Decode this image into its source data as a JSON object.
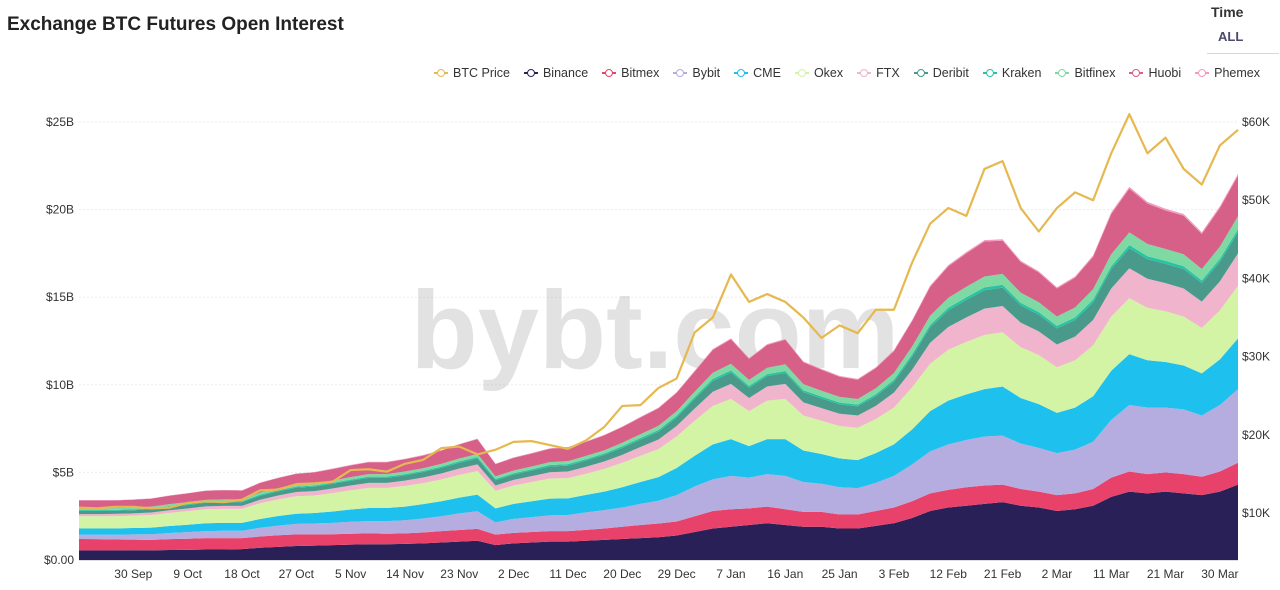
{
  "header": {
    "title": "Exchange BTC Futures Open Interest"
  },
  "time_selector": {
    "label": "Time",
    "value": "ALL"
  },
  "watermark": "bybt.com",
  "colors": {
    "BTC Price": "#e6b84f",
    "Binance": "#2a2058",
    "Bitmex": "#e8426a",
    "Bybit": "#b5acdf",
    "CME": "#1ec0ee",
    "Okex": "#d3f3a5",
    "FTX": "#f0b4cc",
    "Deribit": "#4a9a8c",
    "Kraken": "#27c4a4",
    "Bitfinex": "#7fd9a2",
    "Huobi": "#d66087",
    "Phemex": "#f598c2"
  },
  "chart_data": {
    "type": "area",
    "title": "Exchange BTC Futures Open Interest",
    "stacked": true,
    "x": [
      "21 Sep",
      "24 Sep",
      "27 Sep",
      "30 Sep",
      "3 Oct",
      "6 Oct",
      "9 Oct",
      "12 Oct",
      "15 Oct",
      "18 Oct",
      "21 Oct",
      "24 Oct",
      "27 Oct",
      "30 Oct",
      "2 Nov",
      "5 Nov",
      "8 Nov",
      "11 Nov",
      "14 Nov",
      "17 Nov",
      "20 Nov",
      "23 Nov",
      "26 Nov",
      "29 Nov",
      "2 Dec",
      "5 Dec",
      "8 Dec",
      "11 Dec",
      "14 Dec",
      "17 Dec",
      "20 Dec",
      "23 Dec",
      "26 Dec",
      "29 Dec",
      "1 Jan",
      "4 Jan",
      "7 Jan",
      "10 Jan",
      "13 Jan",
      "16 Jan",
      "19 Jan",
      "22 Jan",
      "25 Jan",
      "28 Jan",
      "31 Jan",
      "3 Feb",
      "6 Feb",
      "9 Feb",
      "12 Feb",
      "15 Feb",
      "18 Feb",
      "21 Feb",
      "24 Feb",
      "27 Feb",
      "2 Mar",
      "5 Mar",
      "8 Mar",
      "11 Mar",
      "14 Mar",
      "17 Mar",
      "20 Mar",
      "23 Mar",
      "26 Mar",
      "29 Mar",
      "1 Apr"
    ],
    "x_tick_labels": [
      "30 Sep",
      "9 Oct",
      "18 Oct",
      "27 Oct",
      "5 Nov",
      "14 Nov",
      "23 Nov",
      "2 Dec",
      "11 Dec",
      "20 Dec",
      "29 Dec",
      "7 Jan",
      "16 Jan",
      "25 Jan",
      "3 Feb",
      "12 Feb",
      "21 Feb",
      "2 Mar",
      "11 Mar",
      "21 Mar",
      "30 Mar"
    ],
    "y_left": {
      "ticks": [
        "$0.00",
        "$5B",
        "$10B",
        "$15B",
        "$20B",
        "$25B"
      ],
      "range": [
        0,
        25000000000
      ]
    },
    "y_right": {
      "ticks": [
        "$10K",
        "$20K",
        "$30K",
        "$40K",
        "$50K",
        "$60K"
      ],
      "range": [
        4000,
        60000
      ]
    },
    "grid": true,
    "legend": "top-right",
    "series": [
      {
        "name": "Binance",
        "axis": "left",
        "values": [
          0.55,
          0.55,
          0.55,
          0.56,
          0.55,
          0.57,
          0.58,
          0.6,
          0.6,
          0.62,
          0.7,
          0.75,
          0.8,
          0.82,
          0.85,
          0.88,
          0.9,
          0.9,
          0.92,
          0.95,
          1.0,
          1.05,
          1.1,
          0.85,
          0.95,
          1.0,
          1.05,
          1.05,
          1.1,
          1.15,
          1.2,
          1.25,
          1.3,
          1.4,
          1.6,
          1.8,
          1.9,
          2.0,
          2.1,
          2.0,
          1.9,
          1.9,
          1.8,
          1.8,
          1.95,
          2.1,
          2.4,
          2.8,
          3.0,
          3.1,
          3.2,
          3.3,
          3.1,
          3.0,
          2.8,
          2.9,
          3.1,
          3.6,
          3.9,
          3.8,
          3.9,
          3.8,
          3.7,
          3.9,
          4.3
        ]
      },
      {
        "name": "Bitmex",
        "axis": "left",
        "values": [
          0.65,
          0.64,
          0.62,
          0.6,
          0.6,
          0.62,
          0.63,
          0.65,
          0.65,
          0.63,
          0.64,
          0.66,
          0.66,
          0.64,
          0.62,
          0.62,
          0.62,
          0.6,
          0.6,
          0.62,
          0.65,
          0.66,
          0.68,
          0.6,
          0.6,
          0.6,
          0.6,
          0.6,
          0.62,
          0.65,
          0.7,
          0.75,
          0.78,
          0.8,
          0.9,
          1.0,
          1.0,
          0.95,
          0.95,
          0.9,
          0.85,
          0.85,
          0.8,
          0.8,
          0.85,
          0.9,
          0.95,
          1.0,
          1.0,
          1.05,
          1.05,
          1.0,
          0.95,
          0.9,
          0.9,
          0.9,
          0.95,
          1.1,
          1.15,
          1.1,
          1.1,
          1.1,
          1.05,
          1.15,
          1.25
        ]
      },
      {
        "name": "Bybit",
        "axis": "left",
        "values": [
          0.25,
          0.26,
          0.27,
          0.3,
          0.32,
          0.35,
          0.38,
          0.4,
          0.42,
          0.42,
          0.5,
          0.55,
          0.6,
          0.62,
          0.65,
          0.68,
          0.7,
          0.72,
          0.75,
          0.8,
          0.85,
          0.95,
          1.0,
          0.7,
          0.8,
          0.85,
          0.9,
          0.92,
          1.0,
          1.05,
          1.1,
          1.2,
          1.3,
          1.5,
          1.7,
          1.8,
          1.9,
          1.75,
          1.85,
          1.9,
          1.7,
          1.6,
          1.55,
          1.5,
          1.6,
          1.8,
          2.1,
          2.4,
          2.6,
          2.7,
          2.8,
          2.8,
          2.6,
          2.5,
          2.4,
          2.5,
          2.7,
          3.3,
          3.8,
          3.8,
          3.7,
          3.7,
          3.5,
          3.8,
          4.2
        ]
      },
      {
        "name": "CME",
        "axis": "left",
        "values": [
          0.35,
          0.35,
          0.36,
          0.37,
          0.38,
          0.4,
          0.42,
          0.45,
          0.45,
          0.45,
          0.5,
          0.55,
          0.58,
          0.6,
          0.65,
          0.7,
          0.75,
          0.75,
          0.78,
          0.82,
          0.85,
          0.9,
          0.95,
          0.8,
          0.85,
          0.9,
          0.95,
          0.95,
          1.0,
          1.05,
          1.15,
          1.25,
          1.35,
          1.55,
          1.75,
          2.0,
          2.1,
          1.8,
          2.0,
          2.1,
          1.8,
          1.7,
          1.65,
          1.6,
          1.7,
          1.8,
          2.0,
          2.3,
          2.5,
          2.6,
          2.7,
          2.8,
          2.6,
          2.5,
          2.3,
          2.4,
          2.6,
          2.8,
          2.9,
          2.7,
          2.6,
          2.5,
          2.4,
          2.6,
          2.9
        ]
      },
      {
        "name": "Okex",
        "axis": "left",
        "values": [
          0.7,
          0.7,
          0.7,
          0.7,
          0.72,
          0.75,
          0.78,
          0.8,
          0.8,
          0.8,
          0.9,
          0.95,
          1.0,
          1.0,
          1.05,
          1.1,
          1.15,
          1.15,
          1.18,
          1.2,
          1.25,
          1.3,
          1.35,
          1.0,
          1.05,
          1.1,
          1.15,
          1.15,
          1.2,
          1.3,
          1.4,
          1.5,
          1.6,
          1.8,
          2.0,
          2.2,
          2.3,
          2.0,
          2.2,
          2.3,
          2.0,
          1.9,
          1.85,
          1.85,
          1.95,
          2.1,
          2.4,
          2.7,
          2.9,
          3.0,
          3.1,
          3.1,
          2.9,
          2.8,
          2.6,
          2.7,
          2.9,
          3.1,
          3.2,
          3.0,
          2.9,
          2.8,
          2.6,
          2.8,
          3.0
        ]
      },
      {
        "name": "FTX",
        "axis": "left",
        "values": [
          0.12,
          0.12,
          0.13,
          0.13,
          0.14,
          0.15,
          0.15,
          0.16,
          0.17,
          0.17,
          0.2,
          0.22,
          0.24,
          0.25,
          0.26,
          0.27,
          0.28,
          0.28,
          0.3,
          0.32,
          0.34,
          0.36,
          0.38,
          0.3,
          0.32,
          0.34,
          0.36,
          0.38,
          0.4,
          0.42,
          0.45,
          0.5,
          0.55,
          0.6,
          0.7,
          0.8,
          0.85,
          0.75,
          0.8,
          0.85,
          0.75,
          0.72,
          0.7,
          0.7,
          0.75,
          0.85,
          1.0,
          1.2,
          1.3,
          1.4,
          1.5,
          1.5,
          1.4,
          1.35,
          1.3,
          1.35,
          1.45,
          1.6,
          1.7,
          1.65,
          1.6,
          1.6,
          1.5,
          1.65,
          1.85
        ]
      },
      {
        "name": "Deribit",
        "axis": "left",
        "values": [
          0.18,
          0.18,
          0.18,
          0.18,
          0.19,
          0.2,
          0.2,
          0.21,
          0.21,
          0.21,
          0.23,
          0.24,
          0.25,
          0.26,
          0.27,
          0.28,
          0.29,
          0.29,
          0.3,
          0.31,
          0.32,
          0.33,
          0.34,
          0.3,
          0.31,
          0.32,
          0.33,
          0.34,
          0.36,
          0.38,
          0.4,
          0.42,
          0.44,
          0.48,
          0.55,
          0.62,
          0.65,
          0.58,
          0.6,
          0.62,
          0.58,
          0.55,
          0.53,
          0.52,
          0.55,
          0.62,
          0.75,
          0.88,
          0.95,
          1.0,
          1.05,
          1.05,
          0.98,
          0.95,
          0.92,
          0.95,
          1.0,
          1.1,
          1.15,
          1.12,
          1.1,
          1.1,
          1.05,
          1.12,
          1.2
        ]
      },
      {
        "name": "Kraken",
        "axis": "left",
        "values": [
          0.05,
          0.05,
          0.05,
          0.05,
          0.05,
          0.05,
          0.05,
          0.05,
          0.05,
          0.05,
          0.06,
          0.06,
          0.06,
          0.06,
          0.06,
          0.06,
          0.07,
          0.07,
          0.07,
          0.07,
          0.07,
          0.08,
          0.08,
          0.07,
          0.07,
          0.07,
          0.08,
          0.08,
          0.08,
          0.08,
          0.09,
          0.09,
          0.1,
          0.1,
          0.11,
          0.12,
          0.12,
          0.11,
          0.11,
          0.12,
          0.11,
          0.11,
          0.11,
          0.1,
          0.11,
          0.12,
          0.13,
          0.14,
          0.15,
          0.15,
          0.16,
          0.16,
          0.15,
          0.15,
          0.14,
          0.15,
          0.16,
          0.17,
          0.18,
          0.17,
          0.17,
          0.17,
          0.16,
          0.17,
          0.18
        ]
      },
      {
        "name": "Bitfinex",
        "axis": "left",
        "values": [
          0.1,
          0.1,
          0.1,
          0.1,
          0.1,
          0.1,
          0.11,
          0.11,
          0.11,
          0.11,
          0.12,
          0.12,
          0.13,
          0.13,
          0.13,
          0.14,
          0.14,
          0.14,
          0.15,
          0.15,
          0.16,
          0.16,
          0.17,
          0.15,
          0.16,
          0.16,
          0.17,
          0.17,
          0.18,
          0.18,
          0.2,
          0.22,
          0.24,
          0.26,
          0.3,
          0.35,
          0.38,
          0.34,
          0.36,
          0.38,
          0.35,
          0.33,
          0.32,
          0.32,
          0.34,
          0.38,
          0.45,
          0.52,
          0.56,
          0.6,
          0.62,
          0.62,
          0.58,
          0.56,
          0.54,
          0.56,
          0.6,
          0.68,
          0.72,
          0.7,
          0.68,
          0.68,
          0.65,
          0.7,
          0.75
        ]
      },
      {
        "name": "Huobi",
        "axis": "left",
        "values": [
          0.45,
          0.45,
          0.44,
          0.45,
          0.45,
          0.48,
          0.5,
          0.52,
          0.52,
          0.5,
          0.55,
          0.58,
          0.6,
          0.62,
          0.65,
          0.67,
          0.68,
          0.68,
          0.7,
          0.72,
          0.75,
          0.8,
          0.85,
          0.7,
          0.72,
          0.74,
          0.76,
          0.78,
          0.8,
          0.85,
          0.9,
          0.95,
          1.0,
          1.05,
          1.15,
          1.3,
          1.4,
          1.2,
          1.3,
          1.4,
          1.25,
          1.2,
          1.15,
          1.1,
          1.15,
          1.25,
          1.45,
          1.65,
          1.8,
          1.9,
          2.0,
          1.9,
          1.75,
          1.7,
          1.6,
          1.7,
          1.85,
          2.3,
          2.5,
          2.3,
          2.2,
          2.2,
          2.0,
          2.2,
          2.3
        ]
      },
      {
        "name": "Phemex",
        "axis": "left",
        "values": [
          0.02,
          0.02,
          0.02,
          0.02,
          0.02,
          0.02,
          0.02,
          0.02,
          0.02,
          0.02,
          0.02,
          0.02,
          0.02,
          0.02,
          0.03,
          0.03,
          0.03,
          0.03,
          0.03,
          0.03,
          0.03,
          0.03,
          0.03,
          0.03,
          0.03,
          0.03,
          0.03,
          0.03,
          0.03,
          0.03,
          0.03,
          0.04,
          0.04,
          0.04,
          0.05,
          0.05,
          0.05,
          0.05,
          0.05,
          0.05,
          0.05,
          0.05,
          0.05,
          0.05,
          0.05,
          0.06,
          0.06,
          0.07,
          0.07,
          0.08,
          0.08,
          0.08,
          0.07,
          0.07,
          0.07,
          0.07,
          0.08,
          0.09,
          0.1,
          0.1,
          0.1,
          0.1,
          0.1,
          0.1,
          0.11
        ]
      },
      {
        "name": "BTC Price",
        "axis": "right",
        "values": [
          10700,
          10600,
          10800,
          10800,
          10600,
          10700,
          11300,
          11500,
          11400,
          11700,
          12900,
          13000,
          13700,
          13800,
          14000,
          15500,
          15600,
          15300,
          16300,
          16800,
          18300,
          18500,
          17500,
          18100,
          19100,
          19200,
          18700,
          18200,
          19300,
          21000,
          23700,
          23800,
          26000,
          27200,
          33100,
          35000,
          40500,
          37000,
          38000,
          37000,
          35000,
          32400,
          34000,
          33000,
          36000,
          36000,
          42000,
          47000,
          49000,
          48000,
          54000,
          55000,
          49000,
          46000,
          49000,
          51000,
          50000,
          56000,
          61000,
          56000,
          58000,
          54000,
          52000,
          57000,
          59000
        ]
      }
    ]
  }
}
